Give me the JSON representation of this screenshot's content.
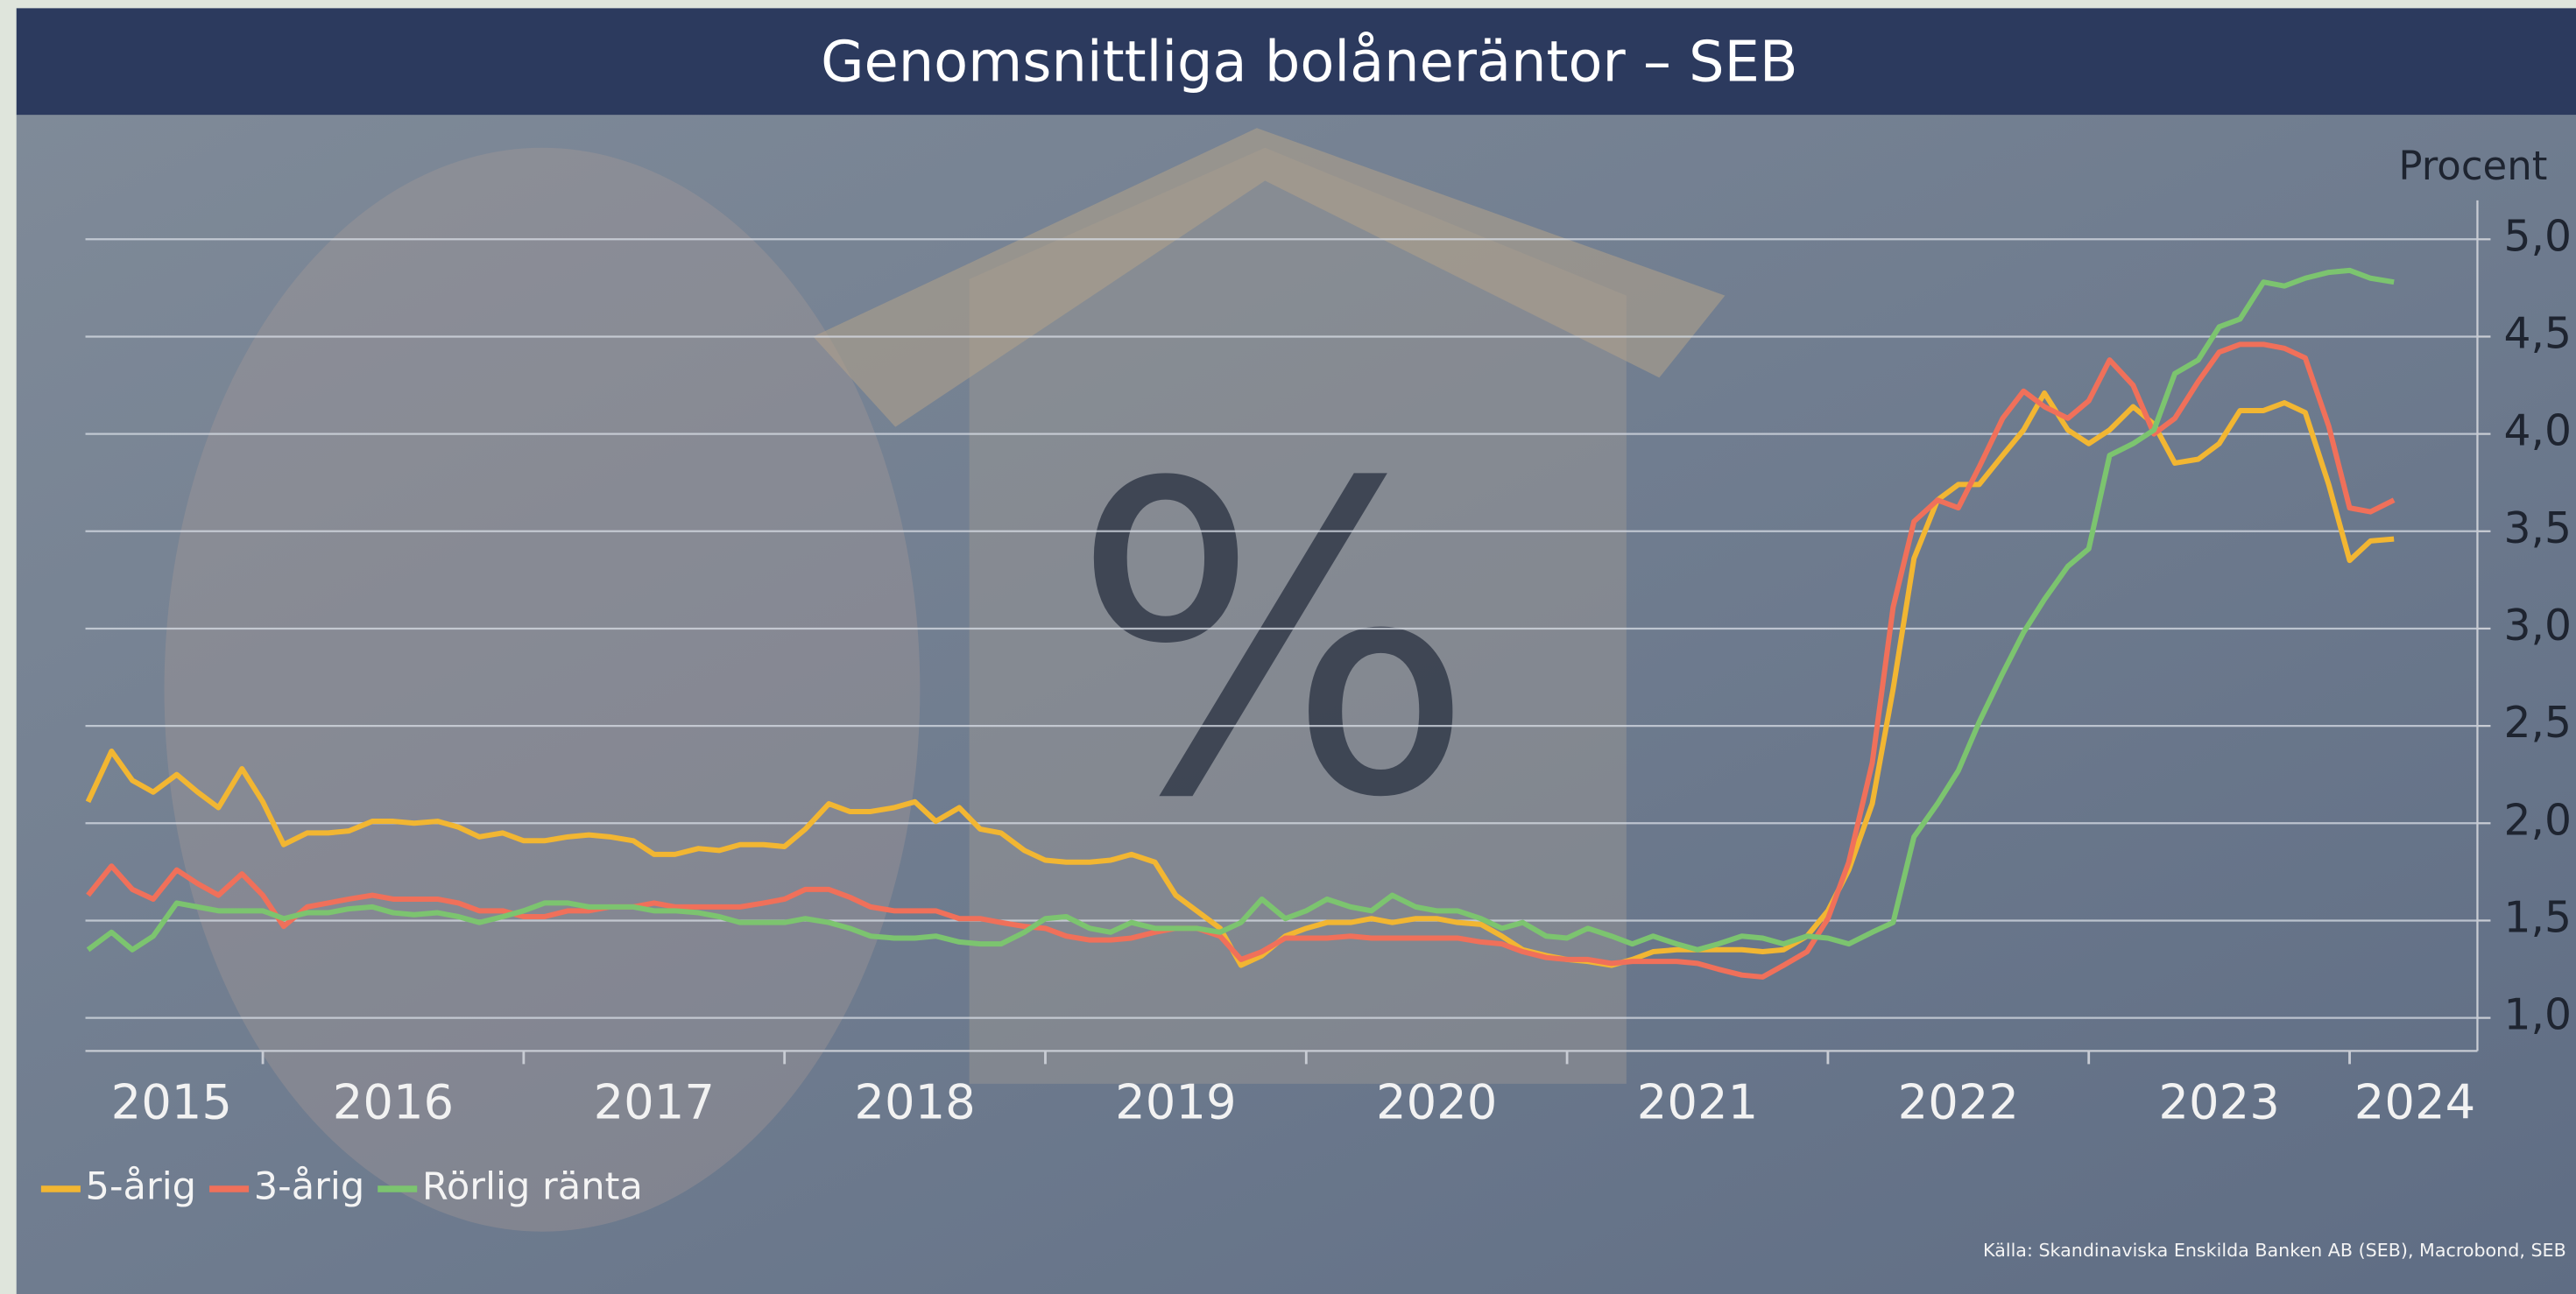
{
  "chart_data": {
    "type": "line",
    "title": "Genomsnittliga bolåneräntor – SEB",
    "y_label": "Procent",
    "source": "Källa: Skandinaviska Enskilda Banken AB (SEB), Macrobond, SEB",
    "image_text": "%",
    "x": [
      2015.33,
      2015.42,
      2015.5,
      2015.58,
      2015.67,
      2015.75,
      2015.83,
      2015.92,
      2016,
      2016.08,
      2016.17,
      2016.25,
      2016.33,
      2016.42,
      2016.5,
      2016.58,
      2016.67,
      2016.75,
      2016.83,
      2016.92,
      2017,
      2017.08,
      2017.17,
      2017.25,
      2017.33,
      2017.42,
      2017.5,
      2017.58,
      2017.67,
      2017.75,
      2017.83,
      2017.92,
      2018,
      2018.08,
      2018.17,
      2018.25,
      2018.33,
      2018.42,
      2018.5,
      2018.58,
      2018.67,
      2018.75,
      2018.83,
      2018.92,
      2019,
      2019.08,
      2019.17,
      2019.25,
      2019.33,
      2019.42,
      2019.5,
      2019.58,
      2019.67,
      2019.75,
      2019.83,
      2019.92,
      2020,
      2020.08,
      2020.17,
      2020.25,
      2020.33,
      2020.42,
      2020.5,
      2020.58,
      2020.67,
      2020.75,
      2020.83,
      2020.92,
      2021,
      2021.08,
      2021.17,
      2021.25,
      2021.33,
      2021.42,
      2021.5,
      2021.58,
      2021.67,
      2021.75,
      2021.83,
      2021.92,
      2022,
      2022.08,
      2022.17,
      2022.25,
      2022.33,
      2022.42,
      2022.5,
      2022.58,
      2022.67,
      2022.75,
      2022.83,
      2022.92,
      2023,
      2023.08,
      2023.17,
      2023.25,
      2023.33,
      2023.42,
      2023.5,
      2023.58,
      2023.67,
      2023.75,
      2023.83,
      2023.92,
      2024,
      2024.08,
      2024.17
    ],
    "series": [
      {
        "name": "5-årig",
        "color": "#f2b632",
        "values": [
          2.11,
          2.37,
          2.22,
          2.16,
          2.25,
          2.16,
          2.08,
          2.28,
          2.11,
          1.89,
          1.95,
          1.95,
          1.96,
          2.01,
          2.01,
          2.0,
          2.01,
          1.98,
          1.93,
          1.95,
          1.91,
          1.91,
          1.93,
          1.94,
          1.93,
          1.91,
          1.84,
          1.84,
          1.87,
          1.86,
          1.89,
          1.89,
          1.88,
          1.97,
          2.1,
          2.06,
          2.06,
          2.08,
          2.11,
          2.01,
          2.08,
          1.97,
          1.95,
          1.86,
          1.81,
          1.8,
          1.8,
          1.81,
          1.84,
          1.8,
          1.63,
          1.55,
          1.46,
          1.27,
          1.32,
          1.42,
          1.46,
          1.49,
          1.49,
          1.51,
          1.49,
          1.51,
          1.51,
          1.49,
          1.48,
          1.42,
          1.35,
          1.32,
          1.3,
          1.29,
          1.27,
          1.3,
          1.34,
          1.35,
          1.35,
          1.35,
          1.35,
          1.34,
          1.35,
          1.42,
          1.55,
          1.76,
          2.1,
          2.69,
          3.36,
          3.66,
          3.74,
          3.74,
          3.89,
          4.02,
          4.21,
          4.02,
          3.95,
          4.02,
          4.14,
          4.05,
          3.85,
          3.87,
          3.95,
          4.12,
          4.12,
          4.16,
          4.11,
          3.74,
          3.35,
          3.45,
          3.46
        ]
      },
      {
        "name": "3-årig",
        "color": "#f0705a",
        "values": [
          1.63,
          1.78,
          1.66,
          1.61,
          1.76,
          1.69,
          1.63,
          1.74,
          1.63,
          1.47,
          1.57,
          1.59,
          1.61,
          1.63,
          1.61,
          1.61,
          1.61,
          1.59,
          1.55,
          1.55,
          1.52,
          1.52,
          1.55,
          1.55,
          1.57,
          1.57,
          1.59,
          1.57,
          1.57,
          1.57,
          1.57,
          1.59,
          1.61,
          1.66,
          1.66,
          1.62,
          1.57,
          1.55,
          1.55,
          1.55,
          1.51,
          1.51,
          1.49,
          1.47,
          1.46,
          1.42,
          1.4,
          1.4,
          1.41,
          1.44,
          1.46,
          1.46,
          1.42,
          1.3,
          1.34,
          1.41,
          1.41,
          1.41,
          1.42,
          1.41,
          1.41,
          1.41,
          1.41,
          1.41,
          1.39,
          1.38,
          1.34,
          1.31,
          1.3,
          1.3,
          1.28,
          1.29,
          1.29,
          1.29,
          1.28,
          1.25,
          1.22,
          1.21,
          1.27,
          1.34,
          1.51,
          1.8,
          2.31,
          3.11,
          3.55,
          3.66,
          3.62,
          3.83,
          4.08,
          4.22,
          4.14,
          4.08,
          4.17,
          4.38,
          4.25,
          4.0,
          4.08,
          4.27,
          4.42,
          4.46,
          4.46,
          4.44,
          4.39,
          4.04,
          3.62,
          3.6,
          3.66
        ]
      },
      {
        "name": "Rörlig ränta",
        "color": "#7cc46f",
        "values": [
          1.35,
          1.44,
          1.35,
          1.42,
          1.59,
          1.57,
          1.55,
          1.55,
          1.55,
          1.51,
          1.54,
          1.54,
          1.56,
          1.57,
          1.54,
          1.53,
          1.54,
          1.52,
          1.49,
          1.52,
          1.55,
          1.59,
          1.59,
          1.57,
          1.57,
          1.57,
          1.55,
          1.55,
          1.54,
          1.52,
          1.49,
          1.49,
          1.49,
          1.51,
          1.49,
          1.46,
          1.42,
          1.41,
          1.41,
          1.42,
          1.39,
          1.38,
          1.38,
          1.44,
          1.51,
          1.52,
          1.46,
          1.44,
          1.49,
          1.46,
          1.46,
          1.46,
          1.44,
          1.49,
          1.61,
          1.51,
          1.55,
          1.61,
          1.57,
          1.55,
          1.63,
          1.57,
          1.55,
          1.55,
          1.51,
          1.46,
          1.49,
          1.42,
          1.41,
          1.46,
          1.42,
          1.38,
          1.42,
          1.38,
          1.35,
          1.38,
          1.42,
          1.41,
          1.38,
          1.42,
          1.41,
          1.38,
          1.44,
          1.49,
          1.93,
          2.1,
          2.27,
          2.52,
          2.77,
          2.98,
          3.15,
          3.32,
          3.41,
          3.89,
          3.95,
          4.02,
          4.31,
          4.38,
          4.55,
          4.59,
          4.78,
          4.76,
          4.8,
          4.83,
          4.84,
          4.8,
          4.78
        ]
      }
    ],
    "xlim": [
      2015.32,
      2024.49
    ],
    "xticks": [
      {
        "value": 2015.65,
        "label": "2015"
      },
      {
        "value": 2016.5,
        "label": "2016"
      },
      {
        "value": 2017.5,
        "label": "2017"
      },
      {
        "value": 2018.5,
        "label": "2018"
      },
      {
        "value": 2019.5,
        "label": "2019"
      },
      {
        "value": 2020.5,
        "label": "2020"
      },
      {
        "value": 2021.5,
        "label": "2021"
      },
      {
        "value": 2022.5,
        "label": "2022"
      },
      {
        "value": 2023.5,
        "label": "2023"
      },
      {
        "value": 2024.25,
        "label": "2024"
      }
    ],
    "xminorticks": [
      2016,
      2017,
      2018,
      2019,
      2020,
      2021,
      2022,
      2023,
      2024
    ],
    "ylim": [
      0.83,
      5.2
    ],
    "yticks": [
      {
        "value": 1,
        "label": "1,0"
      },
      {
        "value": 1.5,
        "label": "1,5"
      },
      {
        "value": 2,
        "label": "2,0"
      },
      {
        "value": 2.5,
        "label": "2,5"
      },
      {
        "value": 3,
        "label": "3,0"
      },
      {
        "value": 3.5,
        "label": "3,5"
      },
      {
        "value": 4,
        "label": "4,0"
      },
      {
        "value": 4.5,
        "label": "4,5"
      },
      {
        "value": 5,
        "label": "5,0"
      }
    ],
    "grid": true,
    "y_axis_side": "right",
    "legend": "bottom-left"
  }
}
